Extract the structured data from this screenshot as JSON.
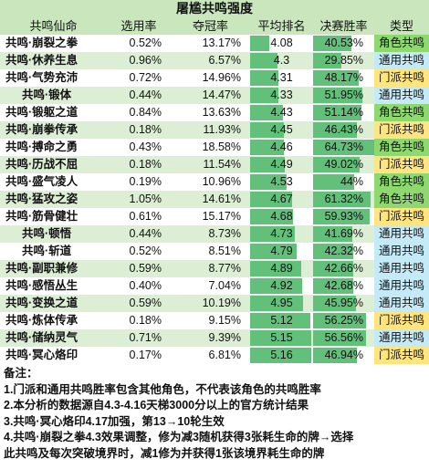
{
  "title": "屠尴共鸣强度",
  "headers": [
    "共鸣仙命",
    "选用率",
    "夺冠率",
    "平均排名",
    "决赛胜率",
    "类型"
  ],
  "rows": [
    {
      "name": "共鸣·崩裂之拳",
      "indent": false,
      "pick": "0.52%",
      "win": "13.17%",
      "avg": "4.08",
      "avg_num": 4.08,
      "final": "40.53%",
      "final_num": 40.53,
      "type": "角色共鸣",
      "kind": "role"
    },
    {
      "name": "共鸣·休养生息",
      "indent": false,
      "pick": "0.96%",
      "win": "6.57%",
      "avg": "4.3",
      "avg_num": 4.3,
      "final": "29.85%",
      "final_num": 29.85,
      "type": "通用共鸣",
      "kind": "common"
    },
    {
      "name": "共鸣·气势充沛",
      "indent": false,
      "pick": "0.72%",
      "win": "14.96%",
      "avg": "4.31",
      "avg_num": 4.31,
      "final": "48.17%",
      "final_num": 48.17,
      "type": "门派共鸣",
      "kind": "sect"
    },
    {
      "name": "共鸣·锻体",
      "indent": true,
      "pick": "0.44%",
      "win": "14.47%",
      "avg": "4.33",
      "avg_num": 4.33,
      "final": "51.95%",
      "final_num": 51.95,
      "type": "通用共鸣",
      "kind": "common"
    },
    {
      "name": "共鸣·锻躯之道",
      "indent": false,
      "pick": "0.84%",
      "win": "13.63%",
      "avg": "4.43",
      "avg_num": 4.43,
      "final": "51.14%",
      "final_num": 51.14,
      "type": "角色共鸣",
      "kind": "role"
    },
    {
      "name": "共鸣·崩拳传承",
      "indent": false,
      "pick": "0.18%",
      "win": "11.93%",
      "avg": "4.45",
      "avg_num": 4.45,
      "final": "46.43%",
      "final_num": 46.43,
      "type": "门派共鸣",
      "kind": "sect"
    },
    {
      "name": "共鸣·搏命之勇",
      "indent": false,
      "pick": "0.43%",
      "win": "18.58%",
      "avg": "4.46",
      "avg_num": 4.46,
      "final": "64.73%",
      "final_num": 64.73,
      "type": "角色共鸣",
      "kind": "role"
    },
    {
      "name": "共鸣·历战不屈",
      "indent": false,
      "pick": "0.18%",
      "win": "11.54%",
      "avg": "4.49",
      "avg_num": 4.49,
      "final": "49.02%",
      "final_num": 49.02,
      "type": "门派共鸣",
      "kind": "sect"
    },
    {
      "name": "共鸣·盛气凌人",
      "indent": false,
      "pick": "0.19%",
      "win": "10.96%",
      "avg": "4.53",
      "avg_num": 4.53,
      "final": "44%",
      "final_num": 44,
      "type": "角色共鸣",
      "kind": "role"
    },
    {
      "name": "共鸣·猛攻之姿",
      "indent": false,
      "pick": "1.05%",
      "win": "14.61%",
      "avg": "4.67",
      "avg_num": 4.67,
      "final": "61.32%",
      "final_num": 61.32,
      "type": "角色共鸣",
      "kind": "role"
    },
    {
      "name": "共鸣·筋骨健壮",
      "indent": false,
      "pick": "0.61%",
      "win": "15.17%",
      "avg": "4.68",
      "avg_num": 4.68,
      "final": "59.93%",
      "final_num": 59.93,
      "type": "门派共鸣",
      "kind": "sect"
    },
    {
      "name": "共鸣·顿悟",
      "indent": true,
      "pick": "0.44%",
      "win": "8.73%",
      "avg": "4.73",
      "avg_num": 4.73,
      "final": "41.69%",
      "final_num": 41.69,
      "type": "通用共鸣",
      "kind": "common"
    },
    {
      "name": "共鸣·斩道",
      "indent": true,
      "pick": "0.52%",
      "win": "8.51%",
      "avg": "4.79",
      "avg_num": 4.79,
      "final": "42.32%",
      "final_num": 42.32,
      "type": "通用共鸣",
      "kind": "common"
    },
    {
      "name": "共鸣·副职兼修",
      "indent": false,
      "pick": "0.59%",
      "win": "8.77%",
      "avg": "4.89",
      "avg_num": 4.89,
      "final": "42.66%",
      "final_num": 42.66,
      "type": "通用共鸣",
      "kind": "common"
    },
    {
      "name": "共鸣·感悟丛生",
      "indent": false,
      "pick": "0.40%",
      "win": "7.04%",
      "avg": "4.92",
      "avg_num": 4.92,
      "final": "42.68%",
      "final_num": 42.68,
      "type": "通用共鸣",
      "kind": "common"
    },
    {
      "name": "共鸣·变换之道",
      "indent": false,
      "pick": "0.59%",
      "win": "10.19%",
      "avg": "4.95",
      "avg_num": 4.95,
      "final": "45.95%",
      "final_num": 45.95,
      "type": "通用共鸣",
      "kind": "common"
    },
    {
      "name": "共鸣·炼体传承",
      "indent": false,
      "pick": "0.18%",
      "win": "9.15%",
      "avg": "5.12",
      "avg_num": 5.12,
      "final": "56.25%",
      "final_num": 56.25,
      "type": "门派共鸣",
      "kind": "sect"
    },
    {
      "name": "共鸣·储纳灵气",
      "indent": false,
      "pick": "0.71%",
      "win": "9.39%",
      "avg": "5.15",
      "avg_num": 5.15,
      "final": "56.56%",
      "final_num": 56.56,
      "type": "通用共鸣",
      "kind": "common"
    },
    {
      "name": "共鸣·冥心烙印",
      "indent": false,
      "pick": "0.17%",
      "win": "6.81%",
      "avg": "5.16",
      "avg_num": 5.16,
      "final": "46.94%",
      "final_num": 46.94,
      "type": "门派共鸣",
      "kind": "sect"
    }
  ],
  "notes": {
    "heading": "备注：",
    "lines": [
      "1.门派和通用共鸣胜率包含其他角色，不代表该角色的共鸣胜率",
      "2.本分析的数据源自4.3-4.16天梯3000分以上的官方统计结果",
      "3.共鸣·冥心烙印4.17加强，第13→10轮生效",
      "4.共鸣·崩裂之拳4.3效果调整，修为减3随机获得3张耗生命的牌→选择",
      "此共鸣及每次突破境界时，减1修为并获得1张该境界耗生命的牌"
    ]
  }
}
